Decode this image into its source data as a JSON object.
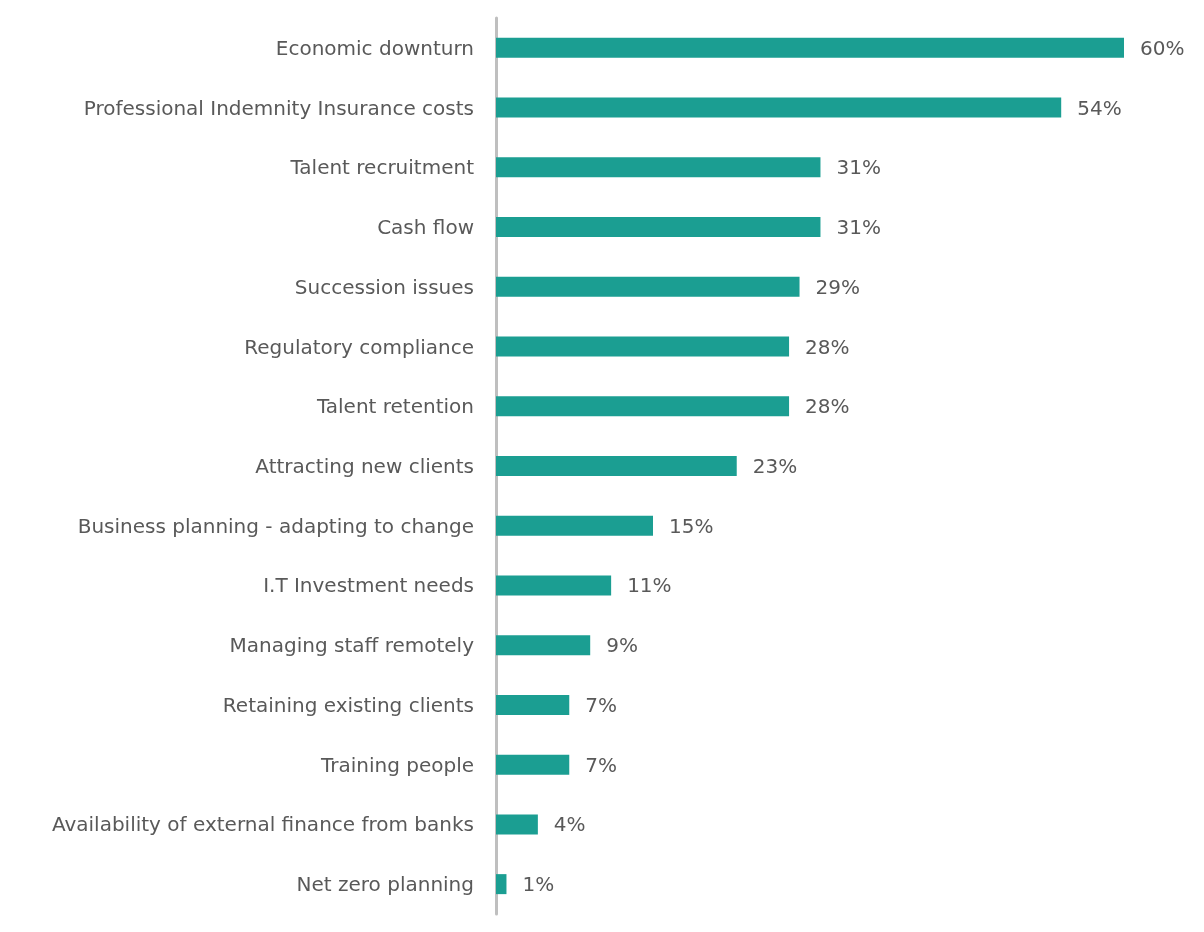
{
  "chart_data": {
    "type": "bar",
    "orientation": "horizontal",
    "categories": [
      "Economic downturn",
      "Professional Indemnity Insurance costs",
      "Talent recruitment",
      "Cash flow",
      "Succession issues",
      "Regulatory compliance",
      "Talent retention",
      "Attracting new clients",
      "Business planning - adapting to change",
      "I.T Investment needs",
      "Managing staff remotely",
      "Retaining existing clients",
      "Training people",
      "Availability of external finance from banks",
      "Net zero planning"
    ],
    "values": [
      60,
      54,
      31,
      31,
      29,
      28,
      28,
      23,
      15,
      11,
      9,
      7,
      7,
      4,
      1
    ],
    "value_labels": [
      "60%",
      "54%",
      "31%",
      "31%",
      "29%",
      "28%",
      "28%",
      "23%",
      "15%",
      "11%",
      "9%",
      "7%",
      "7%",
      "4%",
      "1%"
    ],
    "color": "#1b9e92"
  }
}
